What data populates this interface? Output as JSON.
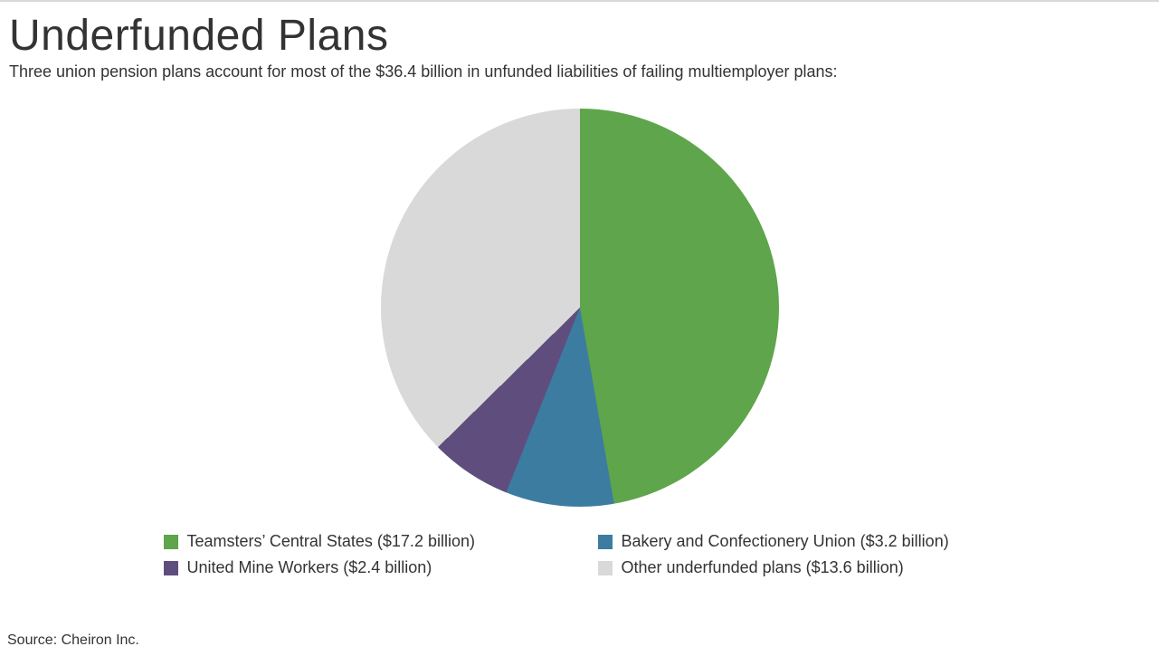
{
  "title": "Underfunded Plans",
  "subtitle": "Three union pension plans account for most of the $36.4 billion in unfunded liabilities of failing multiemployer plans:",
  "source": "Source: Cheiron Inc.",
  "chart": {
    "type": "pie",
    "background_color": "#ffffff",
    "title_fontsize": 48,
    "subtitle_fontsize": 18,
    "legend_fontsize": 18,
    "source_fontsize": 16,
    "text_color": "#333333",
    "top_border_color": "#d9d9d9",
    "slices": [
      {
        "label": "Teamsters’ Central States ($17.2 billion)",
        "value": 17.2,
        "color": "#5ea54c"
      },
      {
        "label": "Bakery and Confectionery Union ($3.2 billion)",
        "value": 3.2,
        "color": "#3c7ca0"
      },
      {
        "label": "United Mine Workers ($2.4 billion)",
        "value": 2.4,
        "color": "#5f4e7d"
      },
      {
        "label": "Other underfunded plans ($13.6 billion)",
        "value": 13.6,
        "color": "#d9d9d9"
      }
    ]
  }
}
